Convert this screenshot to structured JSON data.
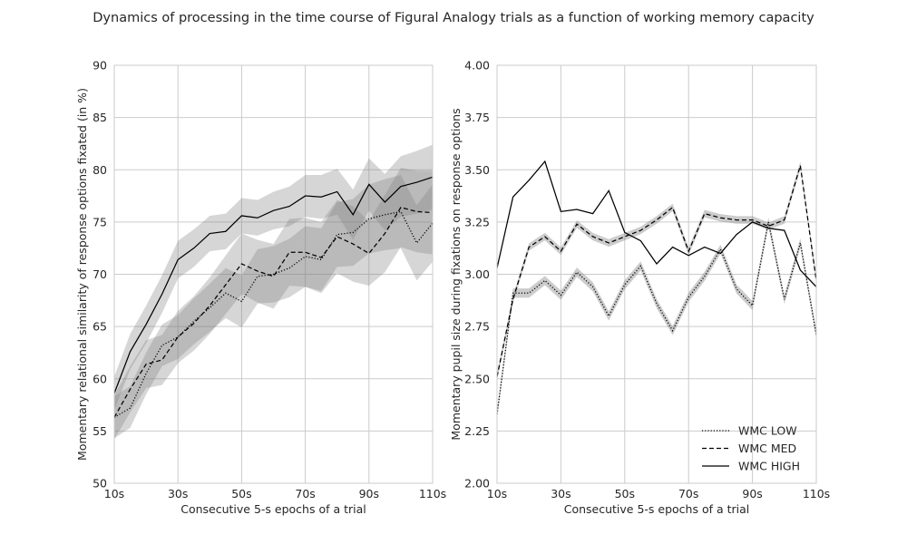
{
  "figure": {
    "title": "Dynamics of processing in the time course of Figural Analogy trials as a function of working memory capacity"
  },
  "chart_data": [
    {
      "type": "line",
      "xlabel": "Consecutive 5-s epochs of a trial",
      "ylabel": "Momentary relational similarity of response options fixated (in %)",
      "x": [
        10,
        15,
        20,
        25,
        30,
        35,
        40,
        45,
        50,
        55,
        60,
        65,
        70,
        75,
        80,
        85,
        90,
        95,
        100,
        105,
        110
      ],
      "xlim": [
        10,
        110
      ],
      "ylim": [
        50,
        90
      ],
      "xticks": [
        10,
        30,
        50,
        70,
        90,
        110
      ],
      "xtick_labels": [
        "10s",
        "30s",
        "50s",
        "70s",
        "90s",
        "110s"
      ],
      "yticks": [
        50,
        55,
        60,
        65,
        70,
        75,
        80,
        85,
        90
      ],
      "ytick_labels": [
        "50",
        "55",
        "60",
        "65",
        "70",
        "75",
        "80",
        "85",
        "90"
      ],
      "grid": true,
      "series": [
        {
          "name": "WMC LOW",
          "style": "dotted",
          "values": [
            56.3,
            57.2,
            60.5,
            63.2,
            64.0,
            65.5,
            66.8,
            68.2,
            67.4,
            69.8,
            70.0,
            70.6,
            71.7,
            71.4,
            73.8,
            74.0,
            75.3,
            75.7,
            76.0,
            73.0,
            74.9
          ],
          "band": [
            [
              54.3,
              58.3
            ],
            [
              55.3,
              59.3
            ],
            [
              58.5,
              62.5
            ],
            [
              61.2,
              65.2
            ],
            [
              61.9,
              66.1
            ],
            [
              63.3,
              67.7
            ],
            [
              64.5,
              69.1
            ],
            [
              65.8,
              70.6
            ],
            [
              64.9,
              69.9
            ],
            [
              67.2,
              72.4
            ],
            [
              67.3,
              72.7
            ],
            [
              67.8,
              73.4
            ],
            [
              68.8,
              74.6
            ],
            [
              68.4,
              74.4
            ],
            [
              70.7,
              76.9
            ],
            [
              70.8,
              77.2
            ],
            [
              72.0,
              78.6
            ],
            [
              72.3,
              79.1
            ],
            [
              72.5,
              79.5
            ],
            [
              69.4,
              76.6
            ],
            [
              71.2,
              78.6
            ]
          ]
        },
        {
          "name": "WMC MED",
          "style": "dashed",
          "values": [
            56.3,
            59.0,
            61.4,
            61.8,
            64.0,
            65.3,
            67.0,
            69.0,
            71.0,
            70.3,
            69.8,
            72.1,
            72.1,
            71.6,
            73.6,
            72.9,
            72.0,
            73.9,
            76.4,
            76.0,
            75.9
          ],
          "band": [
            [
              54.2,
              58.4
            ],
            [
              56.8,
              61.2
            ],
            [
              59.1,
              63.7
            ],
            [
              59.4,
              64.2
            ],
            [
              61.5,
              66.5
            ],
            [
              62.7,
              67.9
            ],
            [
              64.3,
              69.7
            ],
            [
              66.2,
              71.8
            ],
            [
              68.1,
              73.9
            ],
            [
              67.3,
              73.3
            ],
            [
              66.7,
              72.9
            ],
            [
              68.9,
              75.3
            ],
            [
              68.8,
              75.4
            ],
            [
              68.2,
              75.0
            ],
            [
              70.1,
              77.1
            ],
            [
              69.3,
              76.5
            ],
            [
              68.9,
              75.1
            ],
            [
              70.2,
              77.6
            ],
            [
              72.6,
              80.2
            ],
            [
              72.1,
              79.9
            ],
            [
              71.9,
              79.9
            ]
          ]
        },
        {
          "name": "WMC HIGH",
          "style": "solid",
          "values": [
            58.6,
            62.6,
            65.2,
            68.1,
            71.4,
            72.5,
            73.9,
            74.1,
            75.6,
            75.4,
            76.1,
            76.5,
            77.5,
            77.4,
            77.9,
            75.7,
            78.6,
            76.9,
            78.4,
            78.8,
            79.3
          ],
          "band": [
            [
              57.0,
              60.2
            ],
            [
              60.9,
              64.3
            ],
            [
              63.4,
              67.0
            ],
            [
              66.3,
              69.9
            ],
            [
              69.6,
              73.2
            ],
            [
              70.7,
              74.3
            ],
            [
              72.2,
              75.6
            ],
            [
              72.4,
              75.8
            ],
            [
              73.9,
              77.3
            ],
            [
              73.7,
              77.1
            ],
            [
              74.3,
              77.9
            ],
            [
              74.6,
              78.4
            ],
            [
              75.5,
              79.5
            ],
            [
              75.3,
              79.5
            ],
            [
              75.7,
              80.1
            ],
            [
              73.3,
              78.1
            ],
            [
              76.1,
              81.1
            ],
            [
              74.2,
              79.6
            ],
            [
              75.5,
              81.3
            ],
            [
              75.8,
              81.8
            ],
            [
              76.2,
              82.4
            ]
          ]
        }
      ]
    },
    {
      "type": "line",
      "xlabel": "Consecutive 5-s epochs of a trial",
      "ylabel": "Momentary pupil size during fixations on response options",
      "x": [
        10,
        15,
        20,
        25,
        30,
        35,
        40,
        45,
        50,
        55,
        60,
        65,
        70,
        75,
        80,
        85,
        90,
        95,
        100,
        105,
        110
      ],
      "xlim": [
        10,
        110
      ],
      "ylim": [
        2.0,
        4.0
      ],
      "xticks": [
        10,
        30,
        50,
        70,
        90,
        110
      ],
      "xtick_labels": [
        "10s",
        "30s",
        "50s",
        "70s",
        "90s",
        "110s"
      ],
      "yticks": [
        2.0,
        2.25,
        2.5,
        2.75,
        3.0,
        3.25,
        3.5,
        3.75,
        4.0
      ],
      "ytick_labels": [
        "2.00",
        "2.25",
        "2.50",
        "2.75",
        "3.00",
        "3.25",
        "3.50",
        "3.75",
        "4.00"
      ],
      "grid": true,
      "legend": {
        "position": "lower-right"
      },
      "series": [
        {
          "name": "WMC LOW",
          "style": "dotted",
          "values": [
            2.33,
            2.91,
            2.91,
            2.97,
            2.9,
            3.01,
            2.94,
            2.8,
            2.95,
            3.04,
            2.86,
            2.73,
            2.89,
            2.99,
            3.12,
            2.93,
            2.85,
            3.25,
            2.88,
            3.15,
            2.71
          ],
          "band_halfwidth": 0.022
        },
        {
          "name": "WMC MED",
          "style": "dashed",
          "values": [
            2.51,
            2.88,
            3.13,
            3.18,
            3.11,
            3.24,
            3.18,
            3.15,
            3.18,
            3.21,
            3.26,
            3.32,
            3.11,
            3.29,
            3.27,
            3.26,
            3.26,
            3.23,
            3.26,
            3.52,
            2.97
          ],
          "band_halfwidth": 0.018
        },
        {
          "name": "WMC HIGH",
          "style": "solid",
          "values": [
            3.03,
            3.37,
            3.45,
            3.54,
            3.3,
            3.31,
            3.29,
            3.4,
            3.2,
            3.16,
            3.05,
            3.13,
            3.09,
            3.13,
            3.1,
            3.19,
            3.25,
            3.22,
            3.21,
            3.02,
            2.94
          ],
          "band_halfwidth": 0
        }
      ]
    }
  ]
}
